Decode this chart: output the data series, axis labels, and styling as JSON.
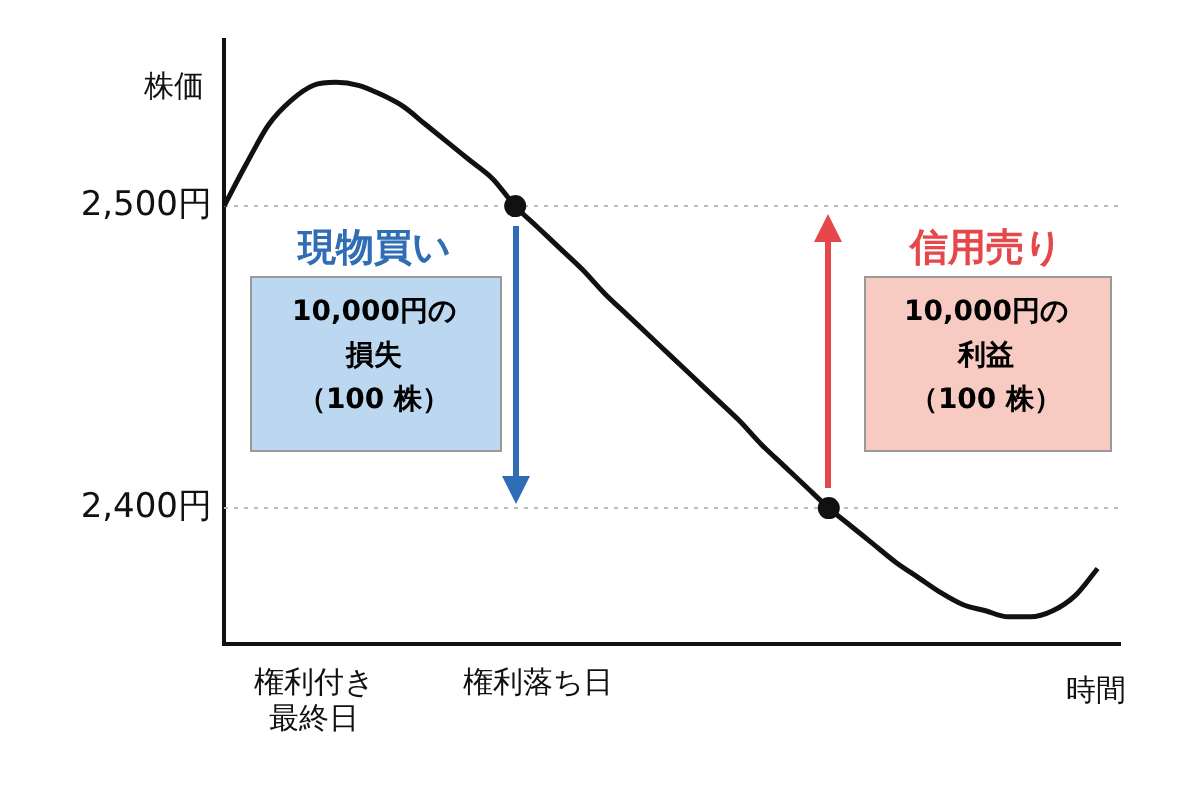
{
  "chart_data": {
    "type": "line",
    "ylabel": "株価",
    "xlabel": "時間",
    "categories": [
      null,
      null,
      null,
      null,
      "権利付き最終日",
      null,
      null,
      null,
      null,
      null,
      null,
      null,
      null,
      null,
      "権利落ち日",
      null,
      null,
      null,
      null,
      null,
      null,
      null,
      null,
      null,
      null,
      null,
      null,
      null,
      null,
      null,
      null,
      null,
      null,
      null,
      null,
      null,
      null,
      null,
      null,
      null,
      null
    ],
    "ylim": [
      2355,
      2555
    ],
    "yticks": [
      {
        "value": 2400,
        "label": "2,400円"
      },
      {
        "value": 2500,
        "label": "2,500円"
      }
    ],
    "grid": false,
    "legend": false,
    "marker": "none",
    "line_style": "solid",
    "series": [
      {
        "color": "#111111",
        "values": [
          2500,
          2514,
          2527,
          2535,
          2540,
          2541,
          2540,
          2537,
          2533,
          2527,
          2521,
          2515,
          2509,
          2500,
          2493,
          2486,
          2479,
          2471,
          2464,
          2457,
          2450,
          2443,
          2436,
          2429,
          2421,
          2414,
          2407,
          2400,
          2394,
          2388,
          2382,
          2377,
          2372,
          2368,
          2366,
          2364,
          2364,
          2366,
          2371,
          2380,
          null
        ]
      },
      {
        "type": "scatter",
        "marker": "circle",
        "color": "#111111",
        "values": [
          null,
          null,
          null,
          null,
          null,
          null,
          null,
          null,
          null,
          null,
          null,
          null,
          null,
          2500,
          null,
          null,
          null,
          null,
          null,
          null,
          null,
          null,
          null,
          null,
          null,
          null,
          null,
          2400,
          null,
          null,
          null,
          null,
          null,
          null,
          null,
          null,
          null,
          null,
          null,
          null,
          null
        ]
      }
    ],
    "ref_lines": [
      {
        "axis": "y",
        "value": 2500,
        "color": "#bbbbbb",
        "line_style": "dotted"
      },
      {
        "axis": "y",
        "value": 2400,
        "color": "#bbbbbb",
        "line_style": "dotted"
      }
    ],
    "annotations": [
      "現物買い",
      "10,000円の",
      "損失",
      "（100 株）",
      "信用売り",
      "10,000円の",
      "利益",
      "（100 株）"
    ]
  }
}
